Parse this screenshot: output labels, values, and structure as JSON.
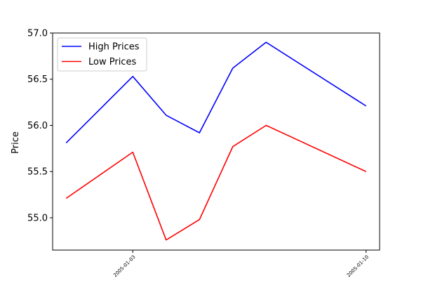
{
  "chart_data": {
    "type": "line",
    "title": "",
    "xlabel": "",
    "ylabel": "Price",
    "x": [
      "2005-01-01",
      "2005-01-03",
      "2005-01-04",
      "2005-01-05",
      "2005-01-06",
      "2005-01-07",
      "2005-01-10"
    ],
    "xtick_labels": [
      "2005-01-03",
      "2005-01-10"
    ],
    "ylim": [
      54.65,
      57.0
    ],
    "yticks": [
      "55.0",
      "55.5",
      "56.0",
      "56.5",
      "57.0"
    ],
    "grid": false,
    "legend_position": "upper-left",
    "series": [
      {
        "name": "High Prices",
        "color": "#0000ff",
        "values": [
          55.81,
          56.53,
          56.11,
          55.92,
          56.62,
          56.9,
          56.21
        ]
      },
      {
        "name": "Low Prices",
        "color": "#ff0000",
        "values": [
          55.21,
          55.71,
          54.76,
          54.98,
          55.77,
          56.0,
          55.5
        ]
      }
    ]
  }
}
